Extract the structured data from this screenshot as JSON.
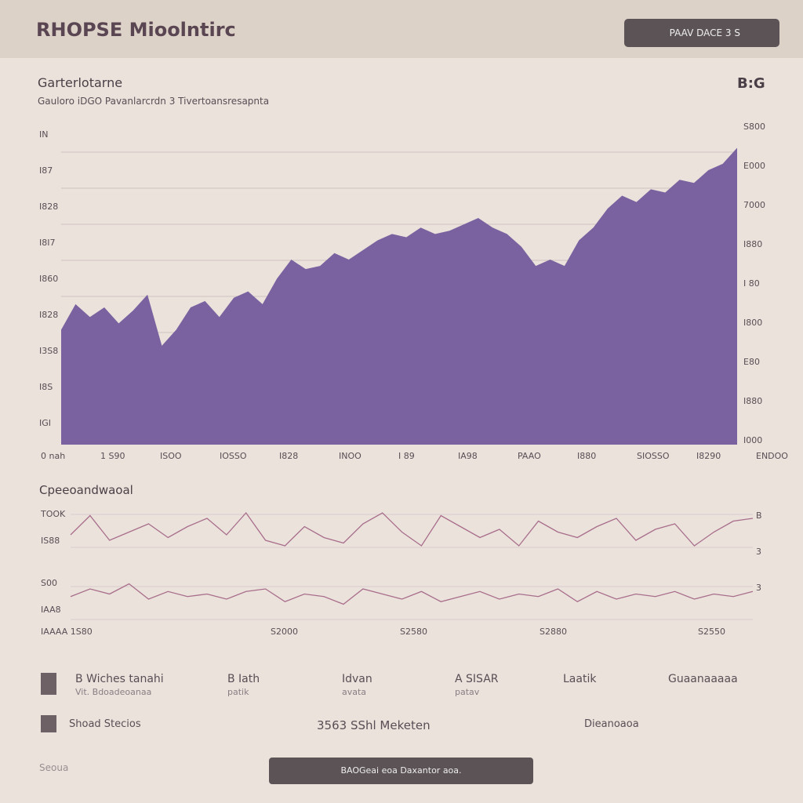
{
  "header": {
    "title": "RHOPSE Mioolntirc",
    "button": "PAAV DACE 3 S"
  },
  "main_card": {
    "title": "Garterlotarne",
    "subtitle": "Gauloro iDGO Pavanlarcrdn 3 Tivertoansresapnta",
    "badge": "B:G",
    "left_axis": [
      "IN",
      "I87",
      "I828",
      "I8I7",
      "I860",
      "I828",
      "I3S8",
      "I8S",
      "IGI"
    ],
    "right_axis": [
      "S800",
      "E000",
      "7000",
      "I880",
      "I 80",
      "I800",
      "E80",
      "I880",
      "I000"
    ],
    "x_labels": [
      "0 nah",
      "1 S90",
      "ISOO",
      "IOSSO",
      "I828",
      "INOO",
      "I 89",
      "IA98",
      "PAAO",
      "I880",
      "SIOSSO",
      "I8290",
      "ENDOO"
    ],
    "ylim": [
      0,
      100
    ],
    "values": [
      36,
      44,
      40,
      43,
      38,
      42,
      47,
      31,
      36,
      43,
      45,
      40,
      46,
      48,
      44,
      52,
      58,
      55,
      56,
      60,
      58,
      61,
      64,
      66,
      65,
      68,
      66,
      67,
      69,
      71,
      68,
      66,
      62,
      56,
      58,
      56,
      64,
      68,
      74,
      78,
      76,
      80,
      79,
      83,
      82,
      86,
      88,
      93
    ]
  },
  "second_card": {
    "title": "Cpeeoandwaoal",
    "left_labels": [
      "TOOK",
      "IS88",
      "S00",
      "IAA8"
    ],
    "right_labels": [
      "B",
      "3",
      "3"
    ],
    "x_labels": [
      "IAAAA 1S80",
      "S2000",
      "S2580",
      "S2880",
      "S2550"
    ],
    "ylim": [
      0,
      100
    ],
    "series": [
      {
        "values": [
          40,
          75,
          30,
          45,
          60,
          35,
          55,
          70,
          40,
          80,
          30,
          20,
          55,
          35,
          25,
          60,
          80,
          45,
          20,
          75,
          55,
          35,
          50,
          20,
          65,
          45,
          35,
          55,
          70,
          30,
          50,
          60,
          20,
          45,
          65,
          70
        ]
      },
      {
        "values": [
          45,
          60,
          50,
          70,
          40,
          55,
          45,
          50,
          40,
          55,
          60,
          35,
          50,
          45,
          30,
          60,
          50,
          40,
          55,
          35,
          45,
          55,
          40,
          50,
          45,
          60,
          35,
          55,
          40,
          50,
          45,
          55,
          40,
          50,
          45,
          55
        ]
      }
    ]
  },
  "stats": [
    {
      "title": "B Wiches tanahi",
      "sub": "Vit. Bdoadeoanaa"
    },
    {
      "title": "B Iath",
      "sub": "patik"
    },
    {
      "title": "Idvan",
      "sub": "avata"
    },
    {
      "title": "A SISAR",
      "sub": "patav"
    },
    {
      "title": "Laatik",
      "sub": ""
    },
    {
      "title": "Guaanaaaaa",
      "sub": ""
    }
  ],
  "row2": [
    "Shoad Stecios",
    "3563 SShl Meketen",
    "Dieanoaoa"
  ],
  "footer": {
    "left": "Seoua",
    "dropdown": "BAOGeai eoa Daxantor aoa."
  }
}
